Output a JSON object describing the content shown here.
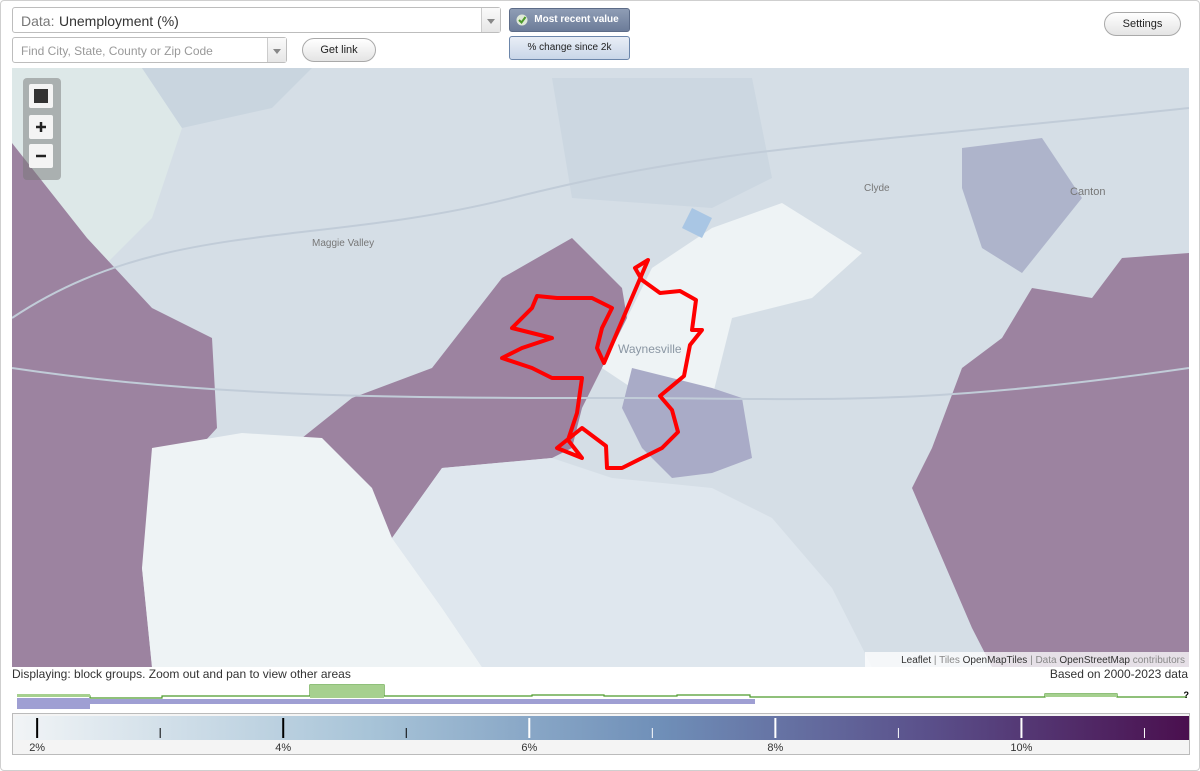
{
  "controls": {
    "data_label": "Data:",
    "data_value": "Unemployment (%)",
    "search_placeholder": "Find City, State, County or Zip Code",
    "get_link": "Get link",
    "most_recent": "Most recent value",
    "pct_change": "% change since 2k",
    "settings": "Settings"
  },
  "map": {
    "places": [
      "Maggie Valley",
      "Clyde",
      "Canton",
      "Waynesville"
    ],
    "attribution": {
      "leaflet": "Leaflet",
      "tiles": "Tiles",
      "tiles_source": "OpenMapTiles",
      "data": "Data",
      "data_source": "OpenStreetMap",
      "contributors": "contributors"
    }
  },
  "status": {
    "displaying": "Displaying: block groups. Zoom out and pan to view other areas",
    "based_on": "Based on 2000-2023 data",
    "unknown": "?"
  },
  "legend": {
    "range": [
      1.82,
      11.37
    ],
    "ticks": [
      {
        "value": 2,
        "label": "2%"
      },
      {
        "value": 4,
        "label": "4%"
      },
      {
        "value": 6,
        "label": "6%"
      },
      {
        "value": 8,
        "label": "8%"
      },
      {
        "value": 10,
        "label": "10%"
      }
    ],
    "minor_ticks": [
      3,
      5,
      7,
      9,
      11
    ]
  }
}
